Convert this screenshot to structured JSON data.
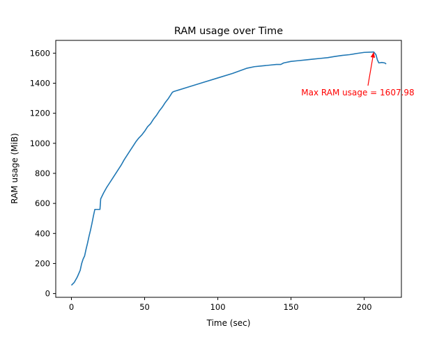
{
  "chart_data": {
    "type": "line",
    "title": "RAM usage over Time",
    "xlabel": "Time (sec)",
    "ylabel": "RAM usage (MiB)",
    "xlim": [
      -10.7,
      225.4
    ],
    "ylim": [
      -25,
      1685
    ],
    "xticks": [
      0,
      50,
      100,
      150,
      200
    ],
    "yticks": [
      0,
      200,
      400,
      600,
      800,
      1000,
      1200,
      1400,
      1600
    ],
    "grid": false,
    "colors": {
      "line": "#1f77b4",
      "annotation": "#ff0000",
      "axis": "#000000"
    },
    "annotation": {
      "text": "Max RAM usage = 1607.98",
      "point": [
        206.5,
        1607.98
      ],
      "text_anchor": [
        157,
        1320
      ]
    },
    "series": [
      {
        "x": [
          0,
          2,
          4,
          6,
          7,
          8,
          9,
          10,
          11,
          12,
          13,
          14,
          15,
          16,
          17,
          18,
          19,
          19.5,
          20,
          22,
          24,
          26,
          28,
          30,
          32,
          34,
          36,
          38,
          40,
          42,
          44,
          46,
          48,
          50,
          52,
          54,
          56,
          58,
          60,
          62,
          64,
          66,
          68,
          69,
          70,
          80,
          90,
          100,
          110,
          120,
          125,
          130,
          135,
          140,
          143,
          145,
          150,
          155,
          160,
          165,
          170,
          175,
          180,
          185,
          190,
          195,
          200,
          205,
          206.5,
          208,
          209,
          210,
          212,
          214,
          215
        ],
        "y": [
          55,
          75,
          110,
          155,
          200,
          230,
          250,
          295,
          335,
          380,
          420,
          465,
          515,
          560,
          560,
          560,
          560,
          560,
          630,
          670,
          705,
          735,
          765,
          795,
          825,
          855,
          890,
          920,
          950,
          980,
          1010,
          1035,
          1055,
          1080,
          1110,
          1130,
          1160,
          1185,
          1215,
          1240,
          1270,
          1295,
          1325,
          1340,
          1345,
          1375,
          1405,
          1435,
          1465,
          1500,
          1510,
          1515,
          1520,
          1525,
          1525,
          1535,
          1545,
          1550,
          1555,
          1560,
          1565,
          1570,
          1578,
          1585,
          1590,
          1598,
          1605,
          1607,
          1607.98,
          1590,
          1555,
          1535,
          1538,
          1535,
          1528
        ]
      }
    ]
  }
}
